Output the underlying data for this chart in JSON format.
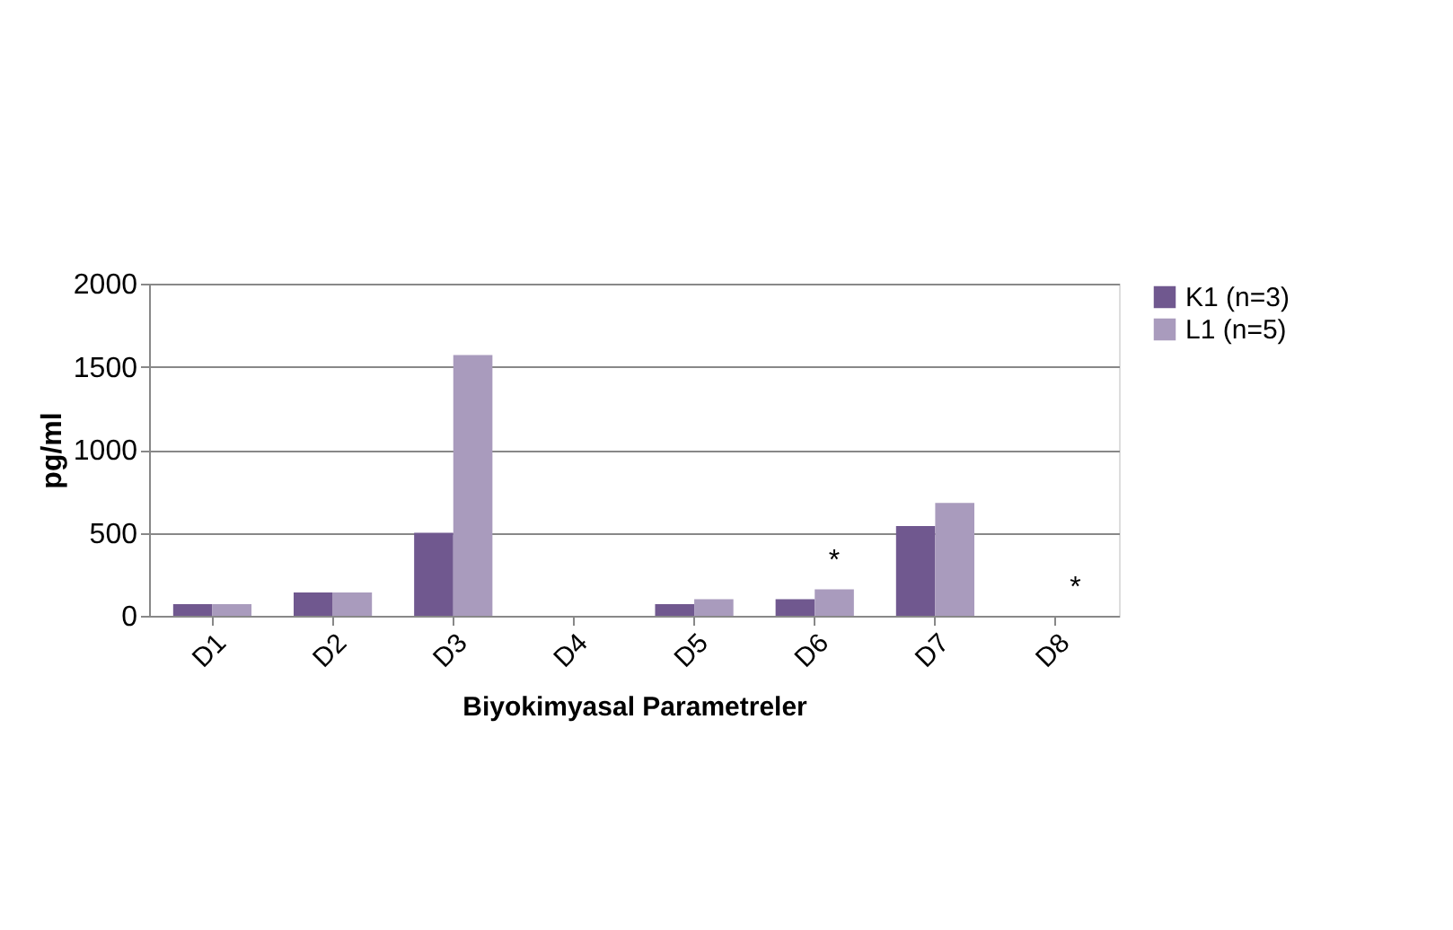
{
  "chart_data": {
    "type": "bar",
    "xlabel": "Biyokimyasal Parametreler",
    "ylabel": "pg/ml",
    "categories": [
      "D1",
      "D2",
      "D3",
      "D4",
      "D5",
      "D6",
      "D7",
      "D8"
    ],
    "series": [
      {
        "name": "K1 (n=3)",
        "color": "#70588f",
        "values": [
          70,
          140,
          500,
          0,
          70,
          100,
          540,
          0
        ]
      },
      {
        "name": "L1 (n=5)",
        "color": "#a99bbd",
        "values": [
          70,
          140,
          1570,
          0,
          100,
          160,
          680,
          0
        ]
      }
    ],
    "ylim": [
      0,
      2000
    ],
    "yticks": [
      0,
      500,
      1000,
      1500,
      2000
    ],
    "grid": "y",
    "legend": "right",
    "annotations": [
      {
        "text": "*",
        "x": "D6",
        "y": 160
      },
      {
        "text": "*",
        "x": "D8",
        "y": 0
      }
    ]
  }
}
